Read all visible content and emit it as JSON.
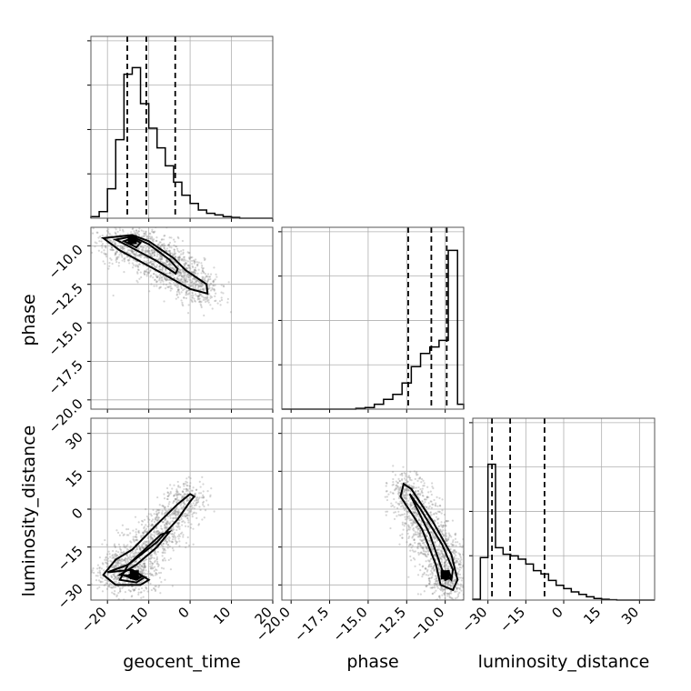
{
  "chart_data": {
    "type": "corner",
    "parameters": [
      "geocent_time",
      "phase",
      "luminosity_distance"
    ],
    "ranges": {
      "geocent_time": [
        -24,
        20
      ],
      "phase": [
        -20.6,
        -8.8
      ],
      "luminosity_distance": [
        -36,
        36
      ]
    },
    "ticks": {
      "geocent_time": [
        -20,
        -10,
        0,
        10,
        20
      ],
      "phase": [
        -20.0,
        -17.5,
        -15.0,
        -12.5,
        -10.0
      ],
      "luminosity_distance": [
        -30,
        -15,
        0,
        15,
        30
      ]
    },
    "tick_labels": {
      "geocent_time": [
        "−20",
        "−10",
        "0",
        "10",
        "20"
      ],
      "phase": [
        "−20.0",
        "−17.5",
        "−15.0",
        "−12.5",
        "−10.0"
      ],
      "luminosity_distance": [
        "−30",
        "−15",
        "0",
        "15",
        "30"
      ]
    },
    "axis_labels": {
      "x_bottom": [
        "geocent_time",
        "phase",
        "luminosity_distance"
      ],
      "y_left": [
        "phase",
        "luminosity_distance"
      ]
    },
    "histograms": {
      "geocent_time": {
        "edges": [
          -24,
          -22,
          -20,
          -18,
          -16,
          -14,
          -12,
          -10,
          -8,
          -6,
          -4,
          -2,
          0,
          2,
          4,
          6,
          8,
          10,
          12,
          14,
          16,
          18,
          20
        ],
        "counts": [
          0.01,
          0.04,
          0.18,
          0.48,
          0.88,
          0.92,
          0.7,
          0.55,
          0.43,
          0.32,
          0.22,
          0.14,
          0.09,
          0.05,
          0.03,
          0.02,
          0.01,
          0.005,
          0,
          0,
          0,
          0
        ],
        "quantiles": [
          -15.2,
          -10.6,
          -3.6
        ]
      },
      "phase": {
        "edges": [
          -20.6,
          -20.0,
          -19.4,
          -18.8,
          -18.2,
          -17.6,
          -17.0,
          -16.4,
          -15.8,
          -15.2,
          -14.6,
          -14.0,
          -13.4,
          -12.8,
          -12.2,
          -11.6,
          -11.0,
          -10.4,
          -9.8,
          -9.2,
          -8.8
        ],
        "counts": [
          0,
          0,
          0,
          0,
          0,
          0,
          0,
          0,
          0.005,
          0.01,
          0.03,
          0.06,
          0.09,
          0.16,
          0.26,
          0.34,
          0.38,
          0.42,
          0.97,
          0.03
        ],
        "quantiles": [
          -12.4,
          -10.9,
          -9.9
        ]
      },
      "luminosity_distance": {
        "edges": [
          -36,
          -33,
          -30,
          -27,
          -24,
          -21,
          -18,
          -15,
          -12,
          -9,
          -6,
          -3,
          0,
          3,
          6,
          9,
          12,
          15,
          18,
          21,
          24,
          27,
          30,
          33,
          36
        ],
        "counts": [
          0.005,
          0.26,
          0.83,
          0.32,
          0.28,
          0.27,
          0.25,
          0.22,
          0.18,
          0.16,
          0.12,
          0.09,
          0.07,
          0.05,
          0.035,
          0.02,
          0.01,
          0.005,
          0.002,
          0,
          0,
          0,
          0,
          0
        ],
        "quantiles": [
          -28.4,
          -21.2,
          -7.6
        ]
      }
    },
    "scatter_2d": {
      "phase_vs_geocent_time": {
        "x_param": "geocent_time",
        "y_param": "phase",
        "peak": [
          -14,
          -9.6
        ],
        "contours": [
          [
            [
              -21,
              -9.5
            ],
            [
              -14,
              -9.3
            ],
            [
              -10,
              -9.7
            ],
            [
              -4,
              -10.8
            ],
            [
              -1,
              -11.6
            ],
            [
              4,
              -12.5
            ],
            [
              4.2,
              -13.1
            ],
            [
              0,
              -12.8
            ],
            [
              -8,
              -11.6
            ],
            [
              -17,
              -10.3
            ],
            [
              -21,
              -9.5
            ]
          ],
          [
            [
              -18,
              -9.6
            ],
            [
              -14,
              -9.4
            ],
            [
              -10,
              -9.9
            ],
            [
              -5,
              -10.9
            ],
            [
              -3,
              -11.5
            ],
            [
              -3.5,
              -11.8
            ],
            [
              -8,
              -11.0
            ],
            [
              -15,
              -10.0
            ],
            [
              -18,
              -9.6
            ]
          ],
          [
            [
              -16,
              -9.7
            ],
            [
              -14,
              -9.5
            ],
            [
              -12,
              -9.8
            ],
            [
              -13,
              -10.1
            ],
            [
              -16,
              -9.7
            ]
          ]
        ]
      },
      "luminosity_distance_vs_geocent_time": {
        "x_param": "geocent_time",
        "y_param": "luminosity_distance",
        "peak": [
          -13.5,
          -26
        ],
        "contours": [
          [
            [
              -20,
              -25
            ],
            [
              -15,
              -22
            ],
            [
              -8,
              -13
            ],
            [
              -3,
              -4
            ],
            [
              0,
              3
            ],
            [
              1,
              5
            ],
            [
              0,
              6
            ],
            [
              -3,
              2
            ],
            [
              -8,
              -6
            ],
            [
              -14,
              -16
            ],
            [
              -18,
              -20
            ],
            [
              -21,
              -26
            ],
            [
              -18,
              -30
            ],
            [
              -12,
              -30
            ],
            [
              -10,
              -28
            ],
            [
              -14,
              -24
            ],
            [
              -20,
              -25
            ]
          ],
          [
            [
              -17,
              -26
            ],
            [
              -13,
              -22
            ],
            [
              -8,
              -15
            ],
            [
              -5,
              -9
            ],
            [
              -7,
              -10
            ],
            [
              -11,
              -16
            ],
            [
              -15,
              -22
            ],
            [
              -17,
              -28
            ],
            [
              -13,
              -29
            ],
            [
              -11,
              -27
            ],
            [
              -17,
              -26
            ]
          ],
          [
            [
              -15.5,
              -26.5
            ],
            [
              -13,
              -25
            ],
            [
              -11.5,
              -26.5
            ],
            [
              -13,
              -28
            ],
            [
              -15.5,
              -26.5
            ]
          ]
        ]
      },
      "luminosity_distance_vs_phase": {
        "x_param": "phase",
        "y_param": "luminosity_distance",
        "peak": [
          -10.0,
          -26
        ],
        "contours": [
          [
            [
              -12.7,
              10
            ],
            [
              -12.9,
              5
            ],
            [
              -11.5,
              -8
            ],
            [
              -10.6,
              -22
            ],
            [
              -10.3,
              -30
            ],
            [
              -9.5,
              -32
            ],
            [
              -9.2,
              -28
            ],
            [
              -9.6,
              -18
            ],
            [
              -10.8,
              -5
            ],
            [
              -12.2,
              8
            ],
            [
              -12.7,
              10
            ]
          ],
          [
            [
              -12.3,
              6
            ],
            [
              -11.0,
              -10
            ],
            [
              -10.2,
              -24
            ],
            [
              -9.6,
              -28
            ],
            [
              -9.5,
              -24
            ],
            [
              -10.2,
              -14
            ],
            [
              -11.6,
              0
            ],
            [
              -12.3,
              6
            ]
          ],
          [
            [
              -10.2,
              -25
            ],
            [
              -9.8,
              -24.5
            ],
            [
              -9.6,
              -27
            ],
            [
              -10.0,
              -28
            ],
            [
              -10.2,
              -25
            ]
          ]
        ]
      }
    },
    "grid": true
  }
}
